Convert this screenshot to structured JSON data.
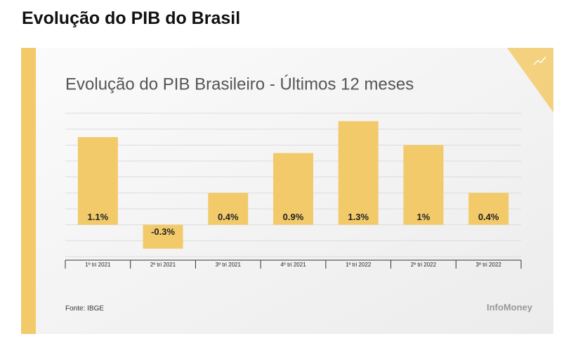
{
  "header": {
    "title": "Evolução do PIB do Brasil"
  },
  "chart_data": {
    "type": "bar",
    "title": "Evolução do PIB Brasileiro - Últimos 12 meses",
    "categories": [
      "1º tri 2021",
      "2º tri 2021",
      "3º tri 2021",
      "4º tri 2021",
      "1º tri 2022",
      "2º tri 2022",
      "3º tri 2022"
    ],
    "values": [
      1.1,
      -0.3,
      0.4,
      0.9,
      1.3,
      1,
      0.4
    ],
    "value_labels": [
      "1.1%",
      "-0.3%",
      "0.4%",
      "0.9%",
      "1.3%",
      "1%",
      "0.4%"
    ],
    "color": "#f2ca6a",
    "ylim": [
      -0.4,
      1.4
    ],
    "yticks": [
      -0.4,
      -0.2,
      0,
      0.2,
      0.4,
      0.6,
      0.8,
      1,
      1.2,
      1.4
    ],
    "grid": true,
    "source": "Fonte: IBGE",
    "brand": "InfoMoney"
  }
}
